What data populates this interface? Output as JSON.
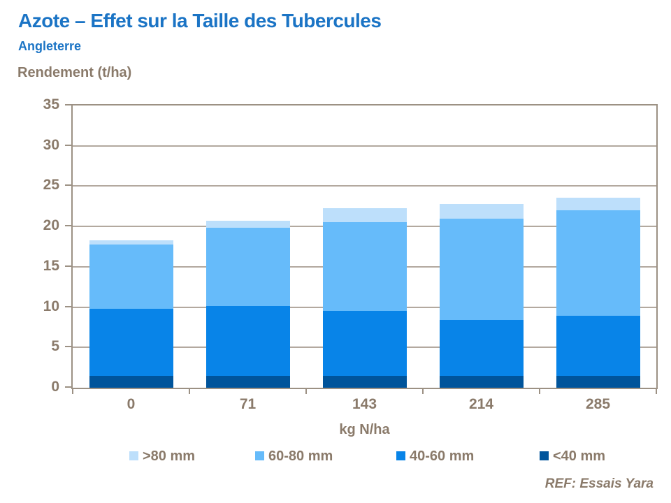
{
  "slide": {
    "title": "Azote – Effet sur la Taille des Tubercules",
    "subtitle": "Angleterre",
    "reference": "REF: Essais Yara"
  },
  "chart_data": {
    "type": "bar",
    "stacked": true,
    "ylabel": "Rendement (t/ha)",
    "xlabel": "kg N/ha",
    "categories": [
      "0",
      "71",
      "143",
      "214",
      "285"
    ],
    "series": [
      {
        "name": "<40 mm",
        "color": "#00549B",
        "values": [
          1.5,
          1.5,
          1.5,
          1.5,
          1.5
        ]
      },
      {
        "name": "40-60 mm",
        "color": "#0884E8",
        "values": [
          8.3,
          8.6,
          8.0,
          6.9,
          7.4
        ]
      },
      {
        "name": "60-80 mm",
        "color": "#66BBFA",
        "values": [
          8.0,
          9.7,
          11.0,
          12.6,
          13.1
        ]
      },
      {
        "name": ">80 mm",
        "color": "#BDDFFB",
        "values": [
          0.5,
          0.9,
          1.8,
          1.8,
          1.6
        ]
      }
    ],
    "legend_order": [
      ">80 mm",
      "60-80 mm",
      "40-60 mm",
      "<40 mm"
    ],
    "legend_position": "bottom",
    "ylim": [
      0,
      35
    ],
    "yticks": [
      0,
      5,
      10,
      15,
      20,
      25,
      30,
      35
    ],
    "grid": true
  },
  "colors": {
    "title_blue": "#1B74C5",
    "text_brown": "#8A7A6A",
    "gridline": "#B3A99F",
    "axis": "#9C9184"
  }
}
